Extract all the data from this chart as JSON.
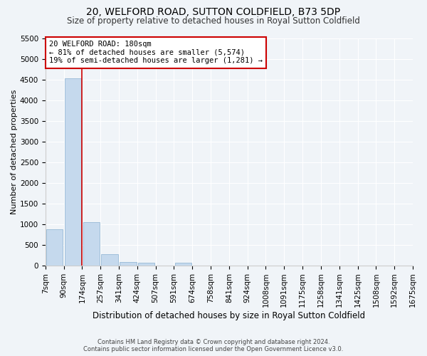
{
  "title1": "20, WELFORD ROAD, SUTTON COLDFIELD, B73 5DP",
  "title2": "Size of property relative to detached houses in Royal Sutton Coldfield",
  "xlabel": "Distribution of detached houses by size in Royal Sutton Coldfield",
  "ylabel": "Number of detached properties",
  "footnote": "Contains HM Land Registry data © Crown copyright and database right 2024.\nContains public sector information licensed under the Open Government Licence v3.0.",
  "bins": [
    "7sqm",
    "90sqm",
    "174sqm",
    "257sqm",
    "341sqm",
    "424sqm",
    "507sqm",
    "591sqm",
    "674sqm",
    "758sqm",
    "841sqm",
    "924sqm",
    "1008sqm",
    "1091sqm",
    "1175sqm",
    "1258sqm",
    "1341sqm",
    "1425sqm",
    "1508sqm",
    "1592sqm",
    "1675sqm"
  ],
  "values": [
    880,
    4540,
    1050,
    275,
    80,
    60,
    5,
    60,
    0,
    0,
    0,
    0,
    0,
    0,
    0,
    0,
    0,
    0,
    0,
    0
  ],
  "bar_color": "#c5d9ed",
  "bar_edge_color": "#a0bfda",
  "vline_color": "#cc0000",
  "annotation_text": "20 WELFORD ROAD: 180sqm\n← 81% of detached houses are smaller (5,574)\n19% of semi-detached houses are larger (1,281) →",
  "annotation_box_color": "white",
  "annotation_box_edge_color": "#cc0000",
  "ylim": [
    0,
    5500
  ],
  "yticks": [
    0,
    500,
    1000,
    1500,
    2000,
    2500,
    3000,
    3500,
    4000,
    4500,
    5000,
    5500
  ],
  "bg_color": "#f0f4f8",
  "plot_bg_color": "#f0f4f8",
  "grid_color": "#ffffff",
  "title1_fontsize": 10,
  "title2_fontsize": 8.5,
  "xlabel_fontsize": 8.5,
  "ylabel_fontsize": 8,
  "tick_fontsize": 7.5,
  "annot_fontsize": 7.5
}
